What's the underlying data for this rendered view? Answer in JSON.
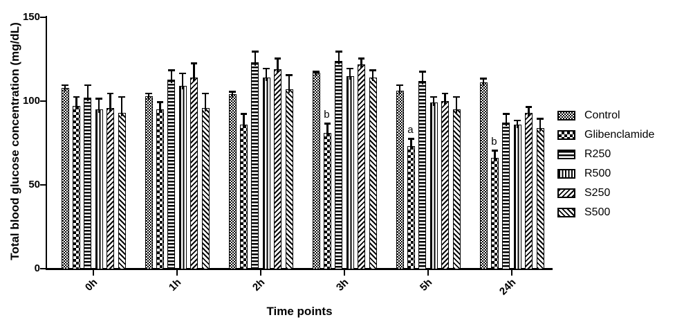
{
  "chart_data": {
    "type": "bar",
    "title": "",
    "xlabel": "Time points",
    "ylabel": "Total blood glucose concentration (mg/dL)",
    "ylim": [
      0,
      150
    ],
    "y_ticks": [
      0,
      50,
      100,
      150
    ],
    "categories": [
      "0h",
      "1h",
      "2h",
      "3h",
      "5h",
      "24h"
    ],
    "series": [
      {
        "name": "Control",
        "pattern": "fine-check",
        "values": [
          108,
          103,
          104,
          117,
          106,
          111
        ],
        "errors": [
          2,
          2,
          2,
          1,
          4,
          3
        ]
      },
      {
        "name": "Glibenclamide",
        "pattern": "coarse-check",
        "values": [
          97,
          95,
          86,
          81,
          73,
          66
        ],
        "errors": [
          6,
          5,
          7,
          6,
          5,
          5
        ]
      },
      {
        "name": "R250",
        "pattern": "h-stripes",
        "values": [
          102,
          113,
          123,
          124,
          112,
          87
        ],
        "errors": [
          8,
          6,
          7,
          6,
          6,
          6
        ]
      },
      {
        "name": "R500",
        "pattern": "v-stripes",
        "values": [
          95,
          109,
          114,
          115,
          99,
          86
        ],
        "errors": [
          7,
          8,
          6,
          5,
          4,
          3
        ]
      },
      {
        "name": "S250",
        "pattern": "fwd-diag",
        "values": [
          96,
          114,
          119,
          122,
          100,
          93
        ],
        "errors": [
          9,
          9,
          7,
          4,
          5,
          4
        ]
      },
      {
        "name": "S500",
        "pattern": "back-diag",
        "values": [
          93,
          96,
          107,
          114,
          95,
          84
        ],
        "errors": [
          10,
          9,
          9,
          5,
          8,
          6
        ]
      }
    ],
    "annotations": [
      {
        "category": "3h",
        "series": "Glibenclamide",
        "text": "b"
      },
      {
        "category": "5h",
        "series": "Glibenclamide",
        "text": "a"
      },
      {
        "category": "24h",
        "series": "Glibenclamide",
        "text": "b"
      }
    ],
    "error_bars": "upper, SEM",
    "legend_position": "right",
    "grid": false,
    "colors": {
      "foreground": "#000000",
      "background": "#ffffff"
    }
  }
}
